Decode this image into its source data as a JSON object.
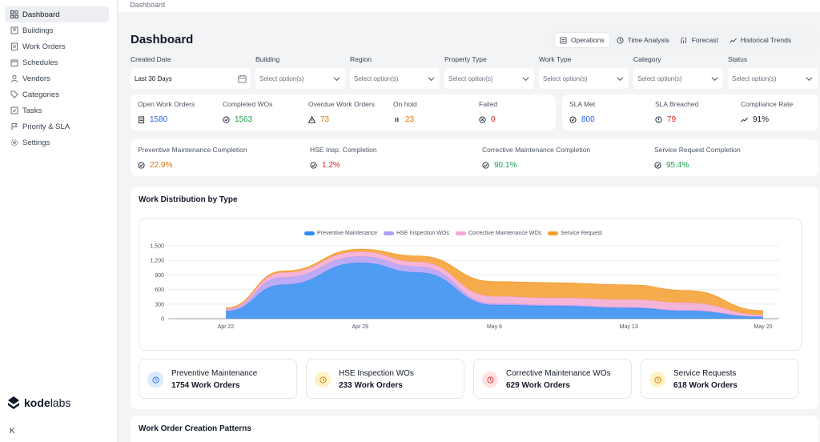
{
  "sidebar": {
    "items": [
      {
        "label": "Dashboard",
        "icon": "dashboard-icon",
        "active": true
      },
      {
        "label": "Buildings",
        "icon": "building-icon"
      },
      {
        "label": "Work Orders",
        "icon": "clipboard-icon"
      },
      {
        "label": "Schedules",
        "icon": "calendar-icon"
      },
      {
        "label": "Vendors",
        "icon": "vendor-icon"
      },
      {
        "label": "Categories",
        "icon": "tag-icon"
      },
      {
        "label": "Tasks",
        "icon": "task-icon"
      },
      {
        "label": "Priority & SLA",
        "icon": "priority-icon"
      },
      {
        "label": "Settings",
        "icon": "gear-icon"
      }
    ],
    "logo_a": "kode",
    "logo_b": "labs",
    "collapse": "K"
  },
  "breadcrumb": "Dashboard",
  "page_title": "Dashboard",
  "tabs": [
    {
      "label": "Operations",
      "icon": "operations-icon",
      "active": true
    },
    {
      "label": "Time Analysis",
      "icon": "clock-icon"
    },
    {
      "label": "Forecast",
      "icon": "forecast-icon"
    },
    {
      "label": "Historical Trends",
      "icon": "trend-icon"
    }
  ],
  "filters": [
    {
      "label": "Created Date",
      "value": "Last 30 Days"
    },
    {
      "label": "Building",
      "placeholder": "Select option(s)"
    },
    {
      "label": "Region",
      "placeholder": "Select option(s)"
    },
    {
      "label": "Property Type",
      "placeholder": "Select option(s)"
    },
    {
      "label": "Work Type",
      "placeholder": "Select option(s)"
    },
    {
      "label": "Category",
      "placeholder": "Select option(s)"
    },
    {
      "label": "Status",
      "placeholder": "Select option(s)"
    }
  ],
  "stats": [
    {
      "label": "Open Work Orders",
      "value": "1580",
      "color": "#2563eb",
      "icon": "clipboard-icon"
    },
    {
      "label": "Completed WOs",
      "value": "1563",
      "color": "#16a34a",
      "icon": "check-circle-icon"
    },
    {
      "label": "Overdue Work Orders",
      "value": "73",
      "color": "#d97706",
      "icon": "warning-icon"
    },
    {
      "label": "On hold",
      "value": "23",
      "color": "#d97706",
      "icon": "pause-icon"
    },
    {
      "label": "Failed",
      "value": "0",
      "color": "#dc2626",
      "icon": "x-circle-icon"
    }
  ],
  "sla": [
    {
      "label": "SLA Met",
      "value": "800",
      "color": "#2563eb",
      "icon": "check-circle-icon"
    },
    {
      "label": "SLA Breached",
      "value": "79",
      "color": "#dc2626",
      "icon": "alert-circle-icon"
    },
    {
      "label": "Compliance Rate",
      "value": "91%",
      "color": "#111827",
      "icon": "trend-icon"
    }
  ],
  "completion": [
    {
      "label": "Preventive Maintenance Completion",
      "value": "22.9%",
      "color": "#d97706"
    },
    {
      "label": "HSE Insp. Completion",
      "value": "1.2%",
      "color": "#dc2626"
    },
    {
      "label": "Corrective Maintenance Completion",
      "value": "90.1%",
      "color": "#16a34a"
    },
    {
      "label": "Service Request Completion",
      "value": "95.4%",
      "color": "#16a34a"
    }
  ],
  "distribution_title": "Work Distribution by Type",
  "chart_data": {
    "type": "area",
    "title": "",
    "stacked": true,
    "x_ticks": [
      "Apr 22",
      "Apr 29",
      "May 6",
      "May 13",
      "May 20"
    ],
    "y_ticks": [
      "0",
      "300",
      "600",
      "900",
      "1,200",
      "1,500"
    ],
    "ylim": [
      0,
      1500
    ],
    "grid": true,
    "legend_position": "top",
    "x": [
      0,
      3,
      7,
      10,
      14,
      17,
      21,
      24,
      28
    ],
    "series": [
      {
        "name": "Preventive Maintenance",
        "color": "#2f8cf0",
        "values": [
          150,
          700,
          1150,
          950,
          280,
          260,
          220,
          160,
          40
        ]
      },
      {
        "name": "HSE Inspection WOs",
        "color": "#b19cf5",
        "values": [
          30,
          150,
          130,
          120,
          30,
          20,
          15,
          10,
          5
        ]
      },
      {
        "name": "Corrective Maintenance WOs",
        "color": "#f3a8d2",
        "values": [
          20,
          100,
          100,
          100,
          150,
          150,
          160,
          160,
          35
        ]
      },
      {
        "name": "Service Request",
        "color": "#f59e2e",
        "values": [
          20,
          30,
          50,
          120,
          300,
          310,
          300,
          250,
          85
        ]
      }
    ]
  },
  "type_cards": [
    {
      "name": "Preventive Maintenance",
      "count": "1754 Work Orders",
      "bg": "#dbeafe",
      "fg": "#2563eb"
    },
    {
      "name": "HSE Inspection WOs",
      "count": "233 Work Orders",
      "bg": "#fef3c7",
      "fg": "#d97706"
    },
    {
      "name": "Corrective Maintenance WOs",
      "count": "629 Work Orders",
      "bg": "#fee2e2",
      "fg": "#dc2626"
    },
    {
      "name": "Service Requests",
      "count": "618 Work Orders",
      "bg": "#fef3c7",
      "fg": "#d97706"
    }
  ],
  "patterns_title": "Work Order Creation Patterns"
}
